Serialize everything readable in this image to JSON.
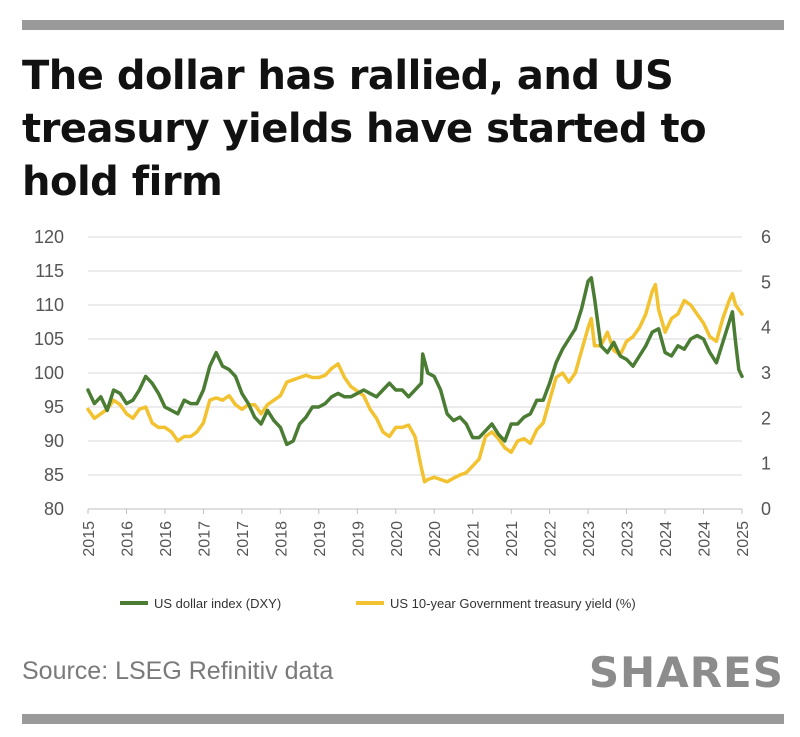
{
  "header": {
    "title": "The dollar has rallied, and US treasury yields have started to hold firm"
  },
  "footer": {
    "source": "Source: LSEG Refinitiv data",
    "brand": "SHARES"
  },
  "colors": {
    "dxy": "#4a7c34",
    "yield": "#f2c230",
    "grid": "#d9d9d9",
    "rule": "#9a9a9a"
  },
  "chart_data": {
    "type": "line",
    "title": "The dollar has rallied, and US treasury yields have started to hold firm",
    "grid": true,
    "legend_position": "bottom",
    "x_tick_labels": [
      "2015",
      "2016",
      "2016",
      "2017",
      "2017",
      "2018",
      "2019",
      "2019",
      "2020",
      "2020",
      "2021",
      "2021",
      "2022",
      "2023",
      "2023",
      "2024",
      "2024",
      "2025"
    ],
    "y_left": {
      "ticks": [
        80,
        85,
        90,
        95,
        100,
        105,
        110,
        115,
        120
      ],
      "range": [
        80,
        120
      ]
    },
    "y_right": {
      "ticks": [
        0,
        1,
        2,
        3,
        4,
        5,
        6
      ],
      "range": [
        0,
        6
      ]
    },
    "x_range": [
      2015.0,
      2025.2
    ],
    "series": [
      {
        "name": "US dollar index (DXY)",
        "axis": "left",
        "points": [
          [
            2015.0,
            97.5
          ],
          [
            2015.1,
            95.5
          ],
          [
            2015.2,
            96.5
          ],
          [
            2015.3,
            94.5
          ],
          [
            2015.4,
            97.5
          ],
          [
            2015.5,
            97.0
          ],
          [
            2015.6,
            95.5
          ],
          [
            2015.7,
            96.0
          ],
          [
            2015.8,
            97.5
          ],
          [
            2015.9,
            99.5
          ],
          [
            2016.0,
            98.5
          ],
          [
            2016.1,
            97.0
          ],
          [
            2016.2,
            95.0
          ],
          [
            2016.3,
            94.5
          ],
          [
            2016.4,
            94.0
          ],
          [
            2016.5,
            96.0
          ],
          [
            2016.6,
            95.5
          ],
          [
            2016.7,
            95.5
          ],
          [
            2016.8,
            97.5
          ],
          [
            2016.9,
            101.0
          ],
          [
            2017.0,
            103.0
          ],
          [
            2017.1,
            101.0
          ],
          [
            2017.2,
            100.5
          ],
          [
            2017.3,
            99.5
          ],
          [
            2017.4,
            97.0
          ],
          [
            2017.5,
            95.5
          ],
          [
            2017.6,
            93.5
          ],
          [
            2017.7,
            92.5
          ],
          [
            2017.8,
            94.5
          ],
          [
            2017.9,
            93.0
          ],
          [
            2018.0,
            92.0
          ],
          [
            2018.1,
            89.5
          ],
          [
            2018.2,
            90.0
          ],
          [
            2018.3,
            92.5
          ],
          [
            2018.4,
            93.5
          ],
          [
            2018.5,
            95.0
          ],
          [
            2018.6,
            95.0
          ],
          [
            2018.7,
            95.5
          ],
          [
            2018.8,
            96.5
          ],
          [
            2018.9,
            97.0
          ],
          [
            2019.0,
            96.5
          ],
          [
            2019.1,
            96.5
          ],
          [
            2019.2,
            97.0
          ],
          [
            2019.3,
            97.5
          ],
          [
            2019.4,
            97.0
          ],
          [
            2019.5,
            96.5
          ],
          [
            2019.6,
            97.5
          ],
          [
            2019.7,
            98.5
          ],
          [
            2019.8,
            97.5
          ],
          [
            2019.9,
            97.5
          ],
          [
            2020.0,
            96.5
          ],
          [
            2020.2,
            98.5
          ],
          [
            2020.22,
            102.8
          ],
          [
            2020.3,
            100.0
          ],
          [
            2020.4,
            99.5
          ],
          [
            2020.5,
            97.5
          ],
          [
            2020.6,
            94.0
          ],
          [
            2020.7,
            93.0
          ],
          [
            2020.8,
            93.5
          ],
          [
            2020.9,
            92.5
          ],
          [
            2021.0,
            90.5
          ],
          [
            2021.1,
            90.5
          ],
          [
            2021.2,
            91.5
          ],
          [
            2021.3,
            92.5
          ],
          [
            2021.4,
            91.0
          ],
          [
            2021.5,
            90.0
          ],
          [
            2021.6,
            92.5
          ],
          [
            2021.7,
            92.5
          ],
          [
            2021.8,
            93.5
          ],
          [
            2021.9,
            94.0
          ],
          [
            2022.0,
            96.0
          ],
          [
            2022.1,
            96.0
          ],
          [
            2022.2,
            98.5
          ],
          [
            2022.3,
            101.5
          ],
          [
            2022.4,
            103.5
          ],
          [
            2022.5,
            105.0
          ],
          [
            2022.6,
            106.5
          ],
          [
            2022.7,
            109.5
          ],
          [
            2022.8,
            113.5
          ],
          [
            2022.85,
            114.0
          ],
          [
            2022.9,
            111.0
          ],
          [
            2023.0,
            104.0
          ],
          [
            2023.1,
            103.0
          ],
          [
            2023.2,
            104.5
          ],
          [
            2023.3,
            102.5
          ],
          [
            2023.4,
            102.0
          ],
          [
            2023.5,
            101.0
          ],
          [
            2023.6,
            102.5
          ],
          [
            2023.7,
            104.0
          ],
          [
            2023.8,
            106.0
          ],
          [
            2023.9,
            106.5
          ],
          [
            2024.0,
            103.0
          ],
          [
            2024.1,
            102.5
          ],
          [
            2024.2,
            104.0
          ],
          [
            2024.3,
            103.5
          ],
          [
            2024.4,
            105.0
          ],
          [
            2024.5,
            105.5
          ],
          [
            2024.6,
            105.0
          ],
          [
            2024.7,
            103.0
          ],
          [
            2024.8,
            101.5
          ],
          [
            2024.9,
            104.5
          ],
          [
            2025.0,
            107.5
          ],
          [
            2025.05,
            109.0
          ],
          [
            2025.1,
            104.5
          ],
          [
            2025.15,
            100.5
          ],
          [
            2025.2,
            99.5
          ]
        ]
      },
      {
        "name": "US 10-year Government treasury yield (%)",
        "axis": "right",
        "points": [
          [
            2015.0,
            2.2
          ],
          [
            2015.1,
            2.0
          ],
          [
            2015.2,
            2.1
          ],
          [
            2015.3,
            2.2
          ],
          [
            2015.4,
            2.4
          ],
          [
            2015.5,
            2.3
          ],
          [
            2015.6,
            2.1
          ],
          [
            2015.7,
            2.0
          ],
          [
            2015.8,
            2.2
          ],
          [
            2015.9,
            2.25
          ],
          [
            2016.0,
            1.9
          ],
          [
            2016.1,
            1.8
          ],
          [
            2016.2,
            1.8
          ],
          [
            2016.3,
            1.7
          ],
          [
            2016.4,
            1.5
          ],
          [
            2016.5,
            1.6
          ],
          [
            2016.6,
            1.6
          ],
          [
            2016.7,
            1.7
          ],
          [
            2016.8,
            1.9
          ],
          [
            2016.9,
            2.4
          ],
          [
            2017.0,
            2.45
          ],
          [
            2017.1,
            2.4
          ],
          [
            2017.2,
            2.5
          ],
          [
            2017.3,
            2.3
          ],
          [
            2017.4,
            2.2
          ],
          [
            2017.5,
            2.3
          ],
          [
            2017.6,
            2.3
          ],
          [
            2017.7,
            2.1
          ],
          [
            2017.8,
            2.3
          ],
          [
            2017.9,
            2.4
          ],
          [
            2018.0,
            2.5
          ],
          [
            2018.1,
            2.8
          ],
          [
            2018.2,
            2.85
          ],
          [
            2018.3,
            2.9
          ],
          [
            2018.4,
            2.95
          ],
          [
            2018.5,
            2.9
          ],
          [
            2018.6,
            2.9
          ],
          [
            2018.7,
            2.95
          ],
          [
            2018.8,
            3.1
          ],
          [
            2018.9,
            3.2
          ],
          [
            2019.0,
            2.9
          ],
          [
            2019.1,
            2.7
          ],
          [
            2019.2,
            2.6
          ],
          [
            2019.3,
            2.5
          ],
          [
            2019.4,
            2.2
          ],
          [
            2019.5,
            2.0
          ],
          [
            2019.6,
            1.7
          ],
          [
            2019.7,
            1.6
          ],
          [
            2019.8,
            1.8
          ],
          [
            2019.9,
            1.8
          ],
          [
            2020.0,
            1.85
          ],
          [
            2020.1,
            1.6
          ],
          [
            2020.2,
            0.9
          ],
          [
            2020.25,
            0.6
          ],
          [
            2020.3,
            0.65
          ],
          [
            2020.4,
            0.7
          ],
          [
            2020.5,
            0.65
          ],
          [
            2020.6,
            0.6
          ],
          [
            2020.7,
            0.68
          ],
          [
            2020.8,
            0.75
          ],
          [
            2020.9,
            0.8
          ],
          [
            2021.0,
            0.95
          ],
          [
            2021.1,
            1.1
          ],
          [
            2021.2,
            1.6
          ],
          [
            2021.3,
            1.7
          ],
          [
            2021.4,
            1.55
          ],
          [
            2021.5,
            1.35
          ],
          [
            2021.6,
            1.25
          ],
          [
            2021.7,
            1.5
          ],
          [
            2021.8,
            1.55
          ],
          [
            2021.9,
            1.45
          ],
          [
            2022.0,
            1.75
          ],
          [
            2022.1,
            1.9
          ],
          [
            2022.2,
            2.4
          ],
          [
            2022.3,
            2.9
          ],
          [
            2022.4,
            3.0
          ],
          [
            2022.5,
            2.8
          ],
          [
            2022.6,
            3.0
          ],
          [
            2022.7,
            3.5
          ],
          [
            2022.8,
            4.0
          ],
          [
            2022.85,
            4.2
          ],
          [
            2022.9,
            3.6
          ],
          [
            2023.0,
            3.6
          ],
          [
            2023.1,
            3.9
          ],
          [
            2023.2,
            3.5
          ],
          [
            2023.3,
            3.4
          ],
          [
            2023.4,
            3.7
          ],
          [
            2023.5,
            3.8
          ],
          [
            2023.6,
            4.0
          ],
          [
            2023.7,
            4.3
          ],
          [
            2023.8,
            4.8
          ],
          [
            2023.85,
            4.95
          ],
          [
            2023.9,
            4.4
          ],
          [
            2024.0,
            3.9
          ],
          [
            2024.1,
            4.2
          ],
          [
            2024.2,
            4.3
          ],
          [
            2024.3,
            4.6
          ],
          [
            2024.4,
            4.5
          ],
          [
            2024.5,
            4.3
          ],
          [
            2024.6,
            4.1
          ],
          [
            2024.7,
            3.8
          ],
          [
            2024.8,
            3.7
          ],
          [
            2024.9,
            4.2
          ],
          [
            2025.0,
            4.6
          ],
          [
            2025.05,
            4.75
          ],
          [
            2025.1,
            4.5
          ],
          [
            2025.15,
            4.4
          ],
          [
            2025.2,
            4.3
          ]
        ]
      }
    ]
  }
}
